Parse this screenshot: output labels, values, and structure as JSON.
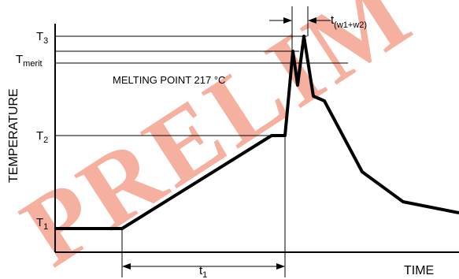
{
  "y_axis_label": "TEMPERATURE",
  "x_axis_label": "TIME",
  "levels": {
    "t3": {
      "base": "T",
      "sub": "3"
    },
    "tmerit": {
      "base": "T",
      "sub": "merit"
    },
    "t2": {
      "base": "T",
      "sub": "2"
    },
    "t1": {
      "base": "T",
      "sub": "1"
    }
  },
  "melting_point_label": "MELTING POINT 217 °C",
  "time_t1": {
    "base": "t",
    "sub": "1"
  },
  "time_tw": {
    "base": "t",
    "sub": "(w1+w2)"
  },
  "watermark": "PRELIM",
  "colors": {
    "curve": "#000000",
    "watermark": "#f4a896",
    "overlap": "#7a5a52"
  }
}
